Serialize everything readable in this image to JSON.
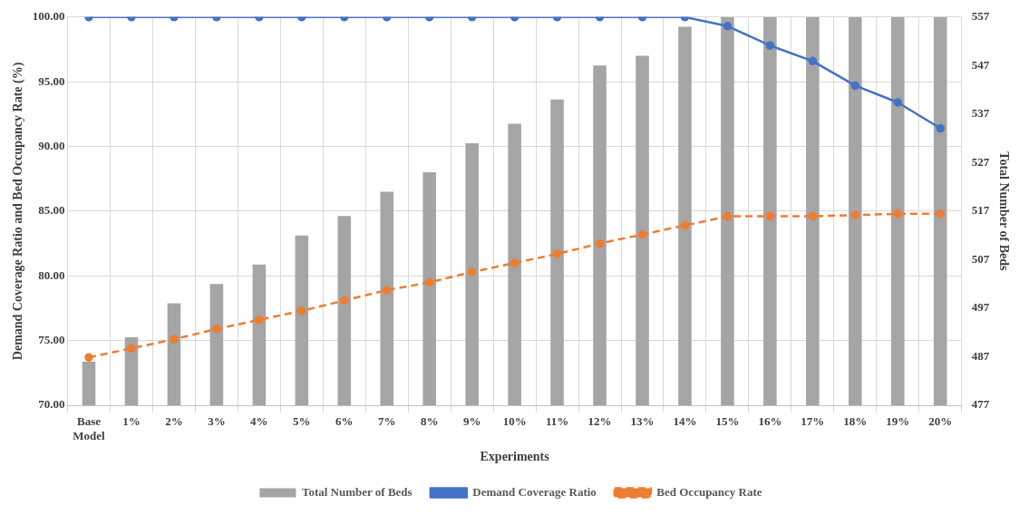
{
  "chart_data": {
    "type": "bar",
    "xlabel": "Experiments",
    "ylabel": "Demand Coverage Ratio and Bed Occupancy Rate (%)",
    "y2label": "Total Number of Beds",
    "categories": [
      "Base Model",
      "1%",
      "2%",
      "3%",
      "4%",
      "5%",
      "6%",
      "7%",
      "8%",
      "9%",
      "10%",
      "11%",
      "12%",
      "13%",
      "14%",
      "15%",
      "16%",
      "17%",
      "18%",
      "19%",
      "20%"
    ],
    "series": [
      {
        "name": "Total Number of Beds",
        "axis": "y2",
        "color": "#a5a5a5",
        "values": [
          486,
          491,
          498,
          502,
          506,
          512,
          516,
          521,
          525,
          531,
          535,
          540,
          547,
          549,
          555,
          557,
          557,
          557,
          557,
          557,
          557
        ]
      },
      {
        "name": "Demand Coverage Ratio",
        "type": "line",
        "color": "#4472c4",
        "marker": "circle",
        "line_style": "solid",
        "values": [
          100,
          100,
          100,
          100,
          100,
          100,
          100,
          100,
          100,
          100,
          100,
          100,
          100,
          100,
          100,
          99.3,
          97.8,
          96.6,
          94.7,
          93.4,
          91.4
        ]
      },
      {
        "name": "Bed Occupancy Rate",
        "type": "line",
        "color": "#ed7d31",
        "marker": "circle",
        "line_style": "dashed",
        "values": [
          73.7,
          74.4,
          75.1,
          75.9,
          76.6,
          77.3,
          78.1,
          78.9,
          79.5,
          80.3,
          81.0,
          81.7,
          82.5,
          83.2,
          83.9,
          84.6,
          84.6,
          84.6,
          84.7,
          84.8,
          84.8
        ]
      }
    ],
    "ylim": [
      70,
      100
    ],
    "yticks": [
      {
        "value": 70,
        "label": "70.00"
      },
      {
        "value": 75,
        "label": "75.00"
      },
      {
        "value": 80,
        "label": "80.00"
      },
      {
        "value": 85,
        "label": "85.00"
      },
      {
        "value": 90,
        "label": "90.00"
      },
      {
        "value": 95,
        "label": "95.00"
      },
      {
        "value": 100,
        "label": "100.00"
      }
    ],
    "y2lim": [
      477,
      557
    ],
    "y2ticks": [
      477,
      487,
      497,
      507,
      517,
      527,
      537,
      547,
      557
    ],
    "grid": true,
    "legend": "bottom"
  }
}
